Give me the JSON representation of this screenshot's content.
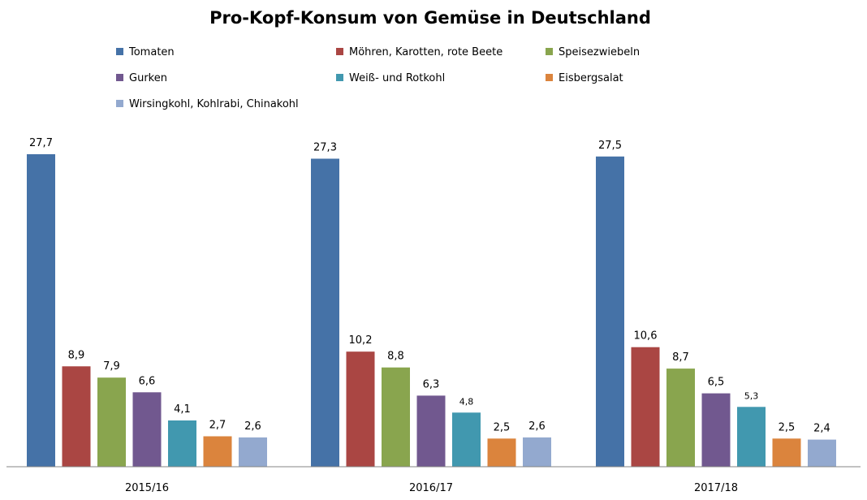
{
  "chart_data": {
    "type": "bar",
    "title": "Pro-Kopf-Konsum von Gemüse in Deutschland",
    "categories": [
      "2015/16",
      "2016/17",
      "2017/18"
    ],
    "series": [
      {
        "name": "Tomaten",
        "color": "#4572A7",
        "values": [
          27.7,
          27.3,
          27.5
        ],
        "labels": [
          "27,7",
          "27,3",
          "27,5"
        ]
      },
      {
        "name": "Möhren, Karotten, rote Beete",
        "color": "#AA4643",
        "values": [
          8.9,
          10.2,
          10.6
        ],
        "labels": [
          "8,9",
          "10,2",
          "10,6"
        ]
      },
      {
        "name": "Speisezwiebeln",
        "color": "#89A54E",
        "values": [
          7.9,
          8.8,
          8.7
        ],
        "labels": [
          "7,9",
          "8,8",
          "8,7"
        ]
      },
      {
        "name": "Gurken",
        "color": "#71588F",
        "values": [
          6.6,
          6.3,
          6.5
        ],
        "labels": [
          "6,6",
          "6,3",
          "6,5"
        ]
      },
      {
        "name": "Weiß- und Rotkohl",
        "color": "#4198AF",
        "values": [
          4.1,
          4.8,
          5.3
        ],
        "labels": [
          "4,1",
          "4,8",
          "5,3"
        ]
      },
      {
        "name": "Eisbergsalat",
        "color": "#DB843D",
        "values": [
          2.7,
          2.5,
          2.5
        ],
        "labels": [
          "2,7",
          "2,5",
          "2,5"
        ]
      },
      {
        "name": "Wirsingkohl, Kohlrabi, Chinakohl",
        "color": "#93A9CF",
        "values": [
          2.6,
          2.6,
          2.4
        ],
        "labels": [
          "2,6",
          "2,6",
          "2,4"
        ]
      }
    ],
    "small_labels": [
      [],
      [],
      [],
      [],
      [
        false,
        true,
        true
      ],
      [],
      []
    ],
    "legend_position": "top",
    "grid": false
  }
}
